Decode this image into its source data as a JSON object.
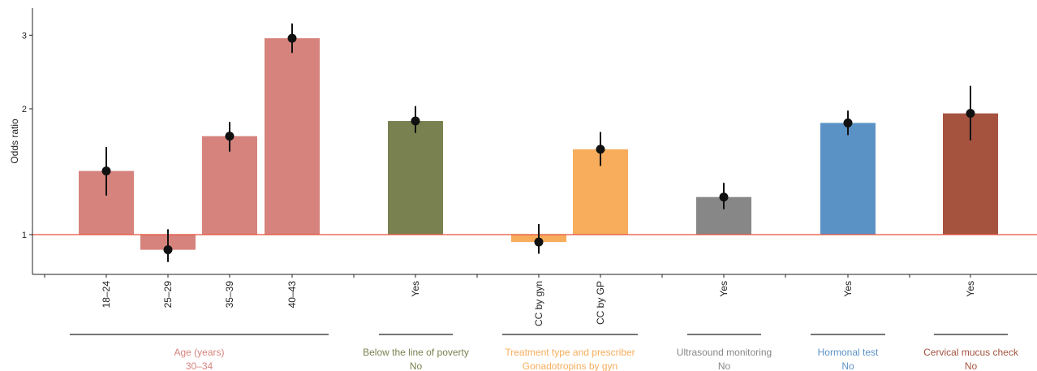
{
  "chart_data": {
    "type": "bar",
    "ylabel": "Odds ratio",
    "y_scale": "log",
    "baseline": 1,
    "ylim": [
      0.79,
      3.4
    ],
    "yticks": [
      "1",
      "2",
      "3"
    ],
    "grid": false,
    "reference_line": {
      "value": 1,
      "color": "#e8503a"
    },
    "bars": [
      {
        "label": "18–24",
        "group": "age",
        "value": 1.42,
        "lower": 1.24,
        "upper": 1.62
      },
      {
        "label": "25–29",
        "group": "age",
        "value": 0.92,
        "lower": 0.86,
        "upper": 1.03
      },
      {
        "label": "35–39",
        "group": "age",
        "value": 1.72,
        "lower": 1.58,
        "upper": 1.86
      },
      {
        "label": "40–43",
        "group": "age",
        "value": 2.95,
        "lower": 2.72,
        "upper": 3.2
      },
      {
        "label": "Yes",
        "group": "poverty",
        "value": 1.87,
        "lower": 1.75,
        "upper": 2.03
      },
      {
        "label": "CC by gyn",
        "group": "treatment",
        "value": 0.96,
        "lower": 0.9,
        "upper": 1.06
      },
      {
        "label": "CC by GP",
        "group": "treatment",
        "value": 1.6,
        "lower": 1.46,
        "upper": 1.76
      },
      {
        "label": "Yes",
        "group": "ultrasound",
        "value": 1.23,
        "lower": 1.15,
        "upper": 1.33
      },
      {
        "label": "Yes",
        "group": "hormonal",
        "value": 1.85,
        "lower": 1.73,
        "upper": 1.98
      },
      {
        "label": "Yes",
        "group": "mucus",
        "value": 1.95,
        "lower": 1.68,
        "upper": 2.27
      }
    ],
    "groups": [
      {
        "id": "age",
        "name": "Age (years)",
        "reference": "30–34",
        "color": "#d6837d"
      },
      {
        "id": "poverty",
        "name": "Below the line of poverty",
        "reference": "No",
        "color": "#7a8150"
      },
      {
        "id": "treatment",
        "name": "Treatment type and prescriber",
        "reference": "Gonadotropins by gyn",
        "color": "#f7ad5c"
      },
      {
        "id": "ultrasound",
        "name": "Ultrasound monitoring",
        "reference": "No",
        "color": "#878787"
      },
      {
        "id": "hormonal",
        "name": "Hormonal test",
        "reference": "No",
        "color": "#5b92c6"
      },
      {
        "id": "mucus",
        "name": "Cervical mucus check",
        "reference": "No",
        "color": "#a5533f"
      }
    ]
  }
}
